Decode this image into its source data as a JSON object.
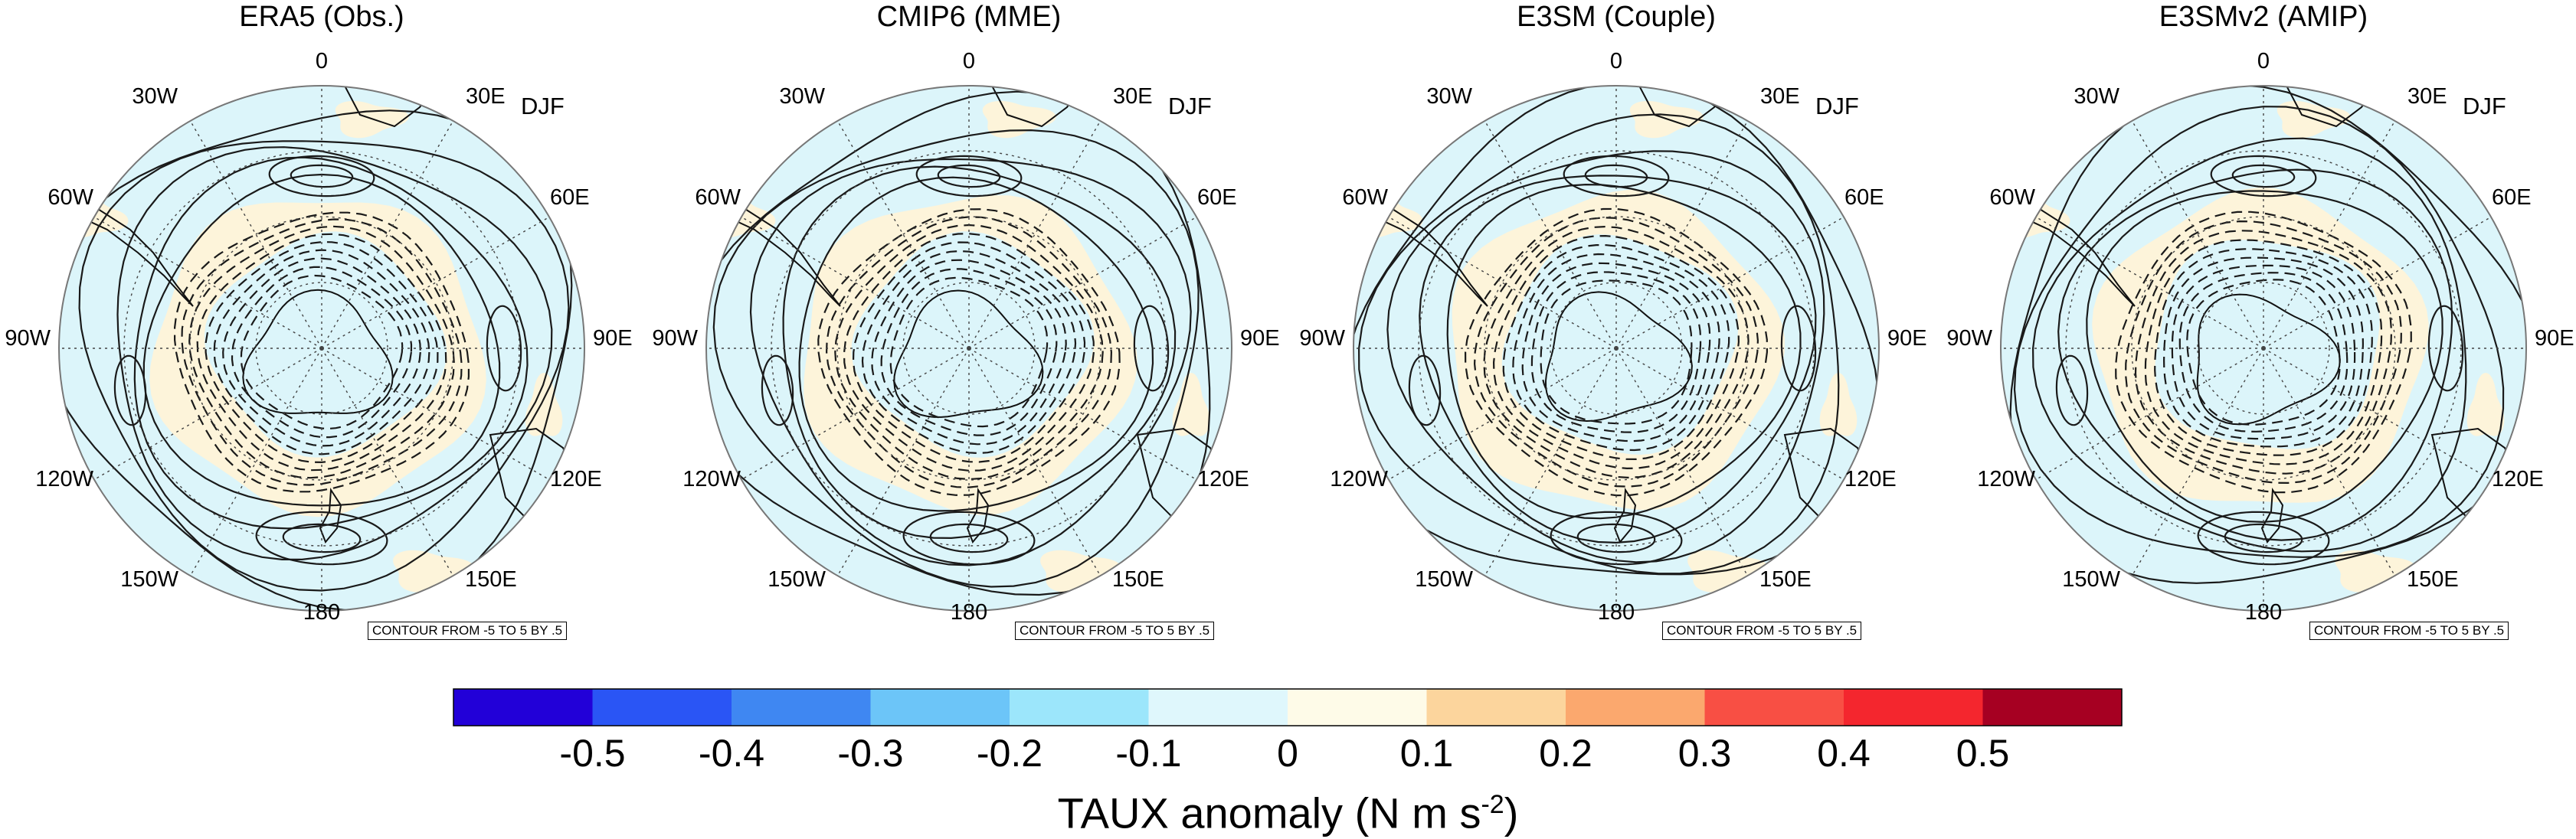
{
  "figure": {
    "season": "DJF",
    "contour_note": "CONTOUR FROM -5 TO 5 BY .5",
    "longitude_labels": [
      "0",
      "30E",
      "60E",
      "90E",
      "120E",
      "150E",
      "180",
      "150W",
      "120W",
      "90W",
      "60W",
      "30W"
    ]
  },
  "panels": [
    {
      "title": "ERA5 (Obs.)"
    },
    {
      "title": "CMIP6 (MME)"
    },
    {
      "title": "E3SM (Couple)"
    },
    {
      "title": "E3SMv2 (AMIP)"
    }
  ],
  "colorbar": {
    "title_prefix": "TAUX anomaly (N m s",
    "title_exponent": "-2",
    "title_suffix": ")",
    "tick_labels": [
      "-0.5",
      "-0.4",
      "-0.3",
      "-0.2",
      "-0.1",
      "0",
      "0.1",
      "0.2",
      "0.3",
      "0.4",
      "0.5"
    ],
    "colors": [
      "#2200d8",
      "#2a55f5",
      "#3f87f2",
      "#6cc5f8",
      "#9ce6fb",
      "#dff7fc",
      "#fefbe8",
      "#fcd59d",
      "#fba86e",
      "#f84f44",
      "#f4262e",
      "#a60022"
    ]
  },
  "colors": {
    "ocean_fill": "#dcf5fa",
    "positive_shade": "#fdf4da",
    "contour": "#1a1a1a"
  }
}
